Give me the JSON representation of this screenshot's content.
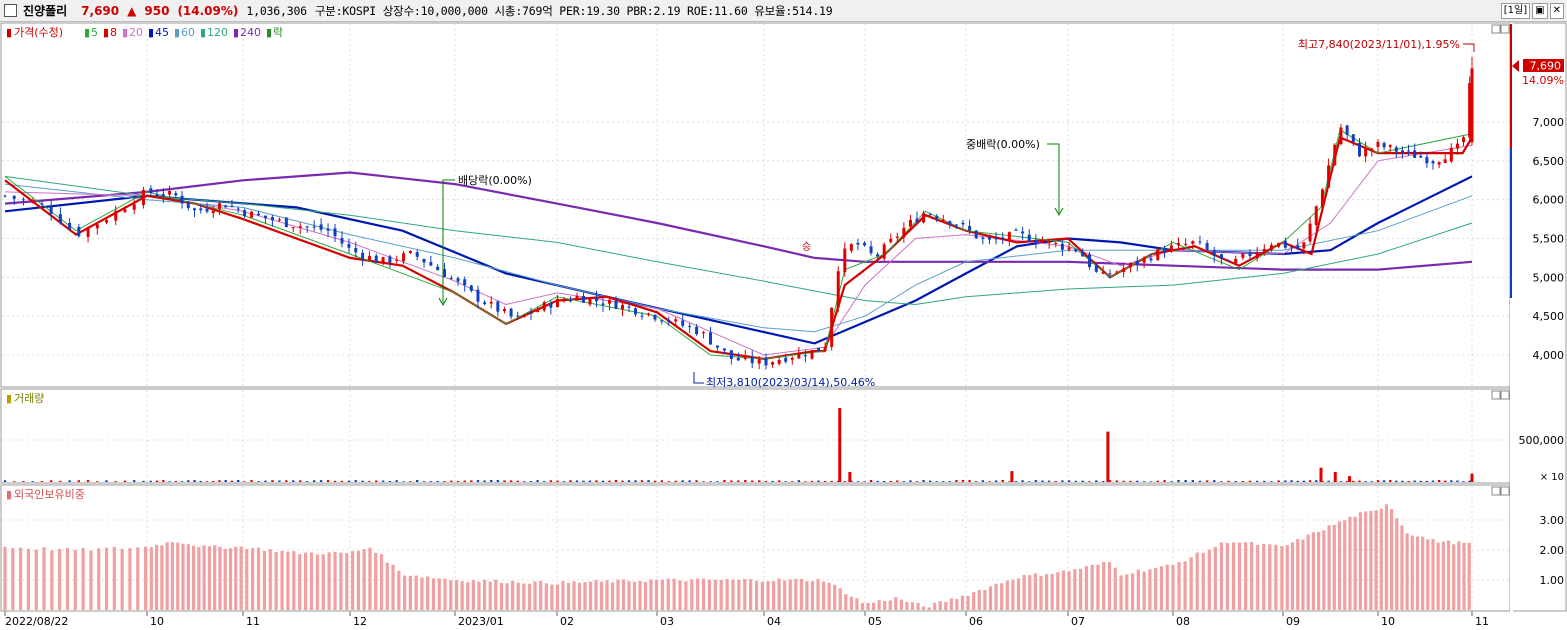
{
  "header": {
    "name": "진양폴리",
    "price": "7,690",
    "change_arrow": "▲",
    "change": "950",
    "change_pct": "(14.09%)",
    "volume": "1,036,306",
    "info": "구분:KOSPI 상장수:10,000,000 시총:769억 PER:19.30 PBR:2.19 ROE:11.60 유보율:514.19",
    "period_button": "[1일]",
    "restore_button": "▣",
    "close_button": "✕"
  },
  "legend": {
    "price": "가격(수정)",
    "ma": [
      {
        "label": "5",
        "color": "#2fa83a"
      },
      {
        "label": "8",
        "color": "#d40000"
      },
      {
        "label": "20",
        "color": "#d070c8"
      },
      {
        "label": "45",
        "color": "#0018b0"
      },
      {
        "label": "60",
        "color": "#5aa0c8"
      },
      {
        "label": "120",
        "color": "#30a880"
      },
      {
        "label": "240",
        "color": "#7a2ab0"
      }
    ],
    "drop_label": "락",
    "volume": "거래량",
    "foreign": "외국인보유비중"
  },
  "annotations": {
    "high": "최고7,840(2023/11/01),1.95%",
    "low": "최저3,810(2023/03/14),50.46%",
    "div1": "배당락(0.00%)",
    "div2": "중배락(0.00%)",
    "small": "승",
    "current_price": "7,690",
    "current_pct": "14.09%",
    "volume_unit": "× 10"
  },
  "chart_data": {
    "type": "candlestick",
    "price_axis": {
      "ticks": [
        "7,000",
        "6,500",
        "6,000",
        "5,500",
        "5,000",
        "4,500",
        "4,000"
      ],
      "values": [
        7000,
        6500,
        6000,
        5500,
        5000,
        4500,
        4000
      ]
    },
    "volume_axis": {
      "ticks": [
        "500,000"
      ],
      "values": [
        500000
      ]
    },
    "foreign_axis": {
      "ticks": [
        "3.00",
        "2.00",
        "1.00"
      ],
      "values": [
        3.0,
        2.0,
        1.0
      ]
    },
    "x_labels": [
      "2022/08/22",
      "10",
      "11",
      "12",
      "2023/01",
      "02",
      "03",
      "04",
      "05",
      "06",
      "07",
      "08",
      "09",
      "10",
      "11"
    ],
    "price_series": [
      {
        "m": 0,
        "c": 6050
      },
      {
        "m": 0.3,
        "c": 5900
      },
      {
        "m": 0.5,
        "c": 5550
      },
      {
        "m": 0.7,
        "c": 5750
      },
      {
        "m": 1.0,
        "c": 6100
      },
      {
        "m": 1.3,
        "c": 6050
      },
      {
        "m": 1.5,
        "c": 5850
      },
      {
        "m": 1.8,
        "c": 5950
      },
      {
        "m": 2.1,
        "c": 5800
      },
      {
        "m": 2.4,
        "c": 5700
      },
      {
        "m": 2.8,
        "c": 5600
      },
      {
        "m": 3.0,
        "c": 5350
      },
      {
        "m": 3.3,
        "c": 5200
      },
      {
        "m": 3.6,
        "c": 5300
      },
      {
        "m": 3.9,
        "c": 5050
      },
      {
        "m": 4.2,
        "c": 4750
      },
      {
        "m": 4.6,
        "c": 4450
      },
      {
        "m": 4.9,
        "c": 4650
      },
      {
        "m": 5.2,
        "c": 4750
      },
      {
        "m": 5.6,
        "c": 4650
      },
      {
        "m": 6.0,
        "c": 4500
      },
      {
        "m": 6.4,
        "c": 4300
      },
      {
        "m": 6.7,
        "c": 3950
      },
      {
        "m": 7.0,
        "c": 3900
      },
      {
        "m": 7.3,
        "c": 4000
      },
      {
        "m": 7.5,
        "c": 4050
      },
      {
        "m": 7.6,
        "c": 4100
      },
      {
        "m": 7.75,
        "c": 5250
      },
      {
        "m": 7.9,
        "c": 5450
      },
      {
        "m": 8.1,
        "c": 5250
      },
      {
        "m": 8.4,
        "c": 5650
      },
      {
        "m": 8.6,
        "c": 5850
      },
      {
        "m": 8.9,
        "c": 5700
      },
      {
        "m": 9.2,
        "c": 5450
      },
      {
        "m": 9.5,
        "c": 5550
      },
      {
        "m": 9.8,
        "c": 5450
      },
      {
        "m": 10.1,
        "c": 5350
      },
      {
        "m": 10.3,
        "c": 5000
      },
      {
        "m": 10.6,
        "c": 5150
      },
      {
        "m": 10.9,
        "c": 5350
      },
      {
        "m": 11.2,
        "c": 5450
      },
      {
        "m": 11.5,
        "c": 5150
      },
      {
        "m": 11.9,
        "c": 5450
      },
      {
        "m": 12.2,
        "c": 5350
      },
      {
        "m": 12.4,
        "c": 6100
      },
      {
        "m": 12.6,
        "c": 6950
      },
      {
        "m": 12.8,
        "c": 6600
      },
      {
        "m": 13.0,
        "c": 6700
      },
      {
        "m": 13.3,
        "c": 6600
      },
      {
        "m": 13.6,
        "c": 6500
      },
      {
        "m": 13.9,
        "c": 6700
      },
      {
        "m": 14.0,
        "c": 7690
      }
    ],
    "ma_series": [
      {
        "name": "45",
        "color": "#0018b0",
        "points": [
          [
            0,
            5850
          ],
          [
            1,
            6050
          ],
          [
            1.5,
            6000
          ],
          [
            2.5,
            5900
          ],
          [
            3.5,
            5600
          ],
          [
            4.5,
            5050
          ],
          [
            5.5,
            4750
          ],
          [
            6.5,
            4450
          ],
          [
            7.5,
            4150
          ],
          [
            8.5,
            4700
          ],
          [
            9,
            5050
          ],
          [
            9.5,
            5400
          ],
          [
            10,
            5500
          ],
          [
            10.5,
            5450
          ],
          [
            11,
            5350
          ],
          [
            12,
            5300
          ],
          [
            12.5,
            5350
          ],
          [
            13,
            5700
          ],
          [
            13.5,
            6000
          ],
          [
            14,
            6300
          ]
        ]
      },
      {
        "name": "240",
        "color": "#7a2ab0",
        "points": [
          [
            0,
            5950
          ],
          [
            1,
            6100
          ],
          [
            2,
            6250
          ],
          [
            3,
            6350
          ],
          [
            4,
            6200
          ],
          [
            5,
            5950
          ],
          [
            6,
            5700
          ],
          [
            7,
            5400
          ],
          [
            7.5,
            5250
          ],
          [
            8,
            5200
          ],
          [
            9,
            5200
          ],
          [
            10,
            5200
          ],
          [
            11,
            5150
          ],
          [
            12,
            5100
          ],
          [
            13,
            5100
          ],
          [
            14,
            5200
          ]
        ]
      },
      {
        "name": "120",
        "color": "#30a880",
        "points": [
          [
            0,
            6300
          ],
          [
            1,
            6050
          ],
          [
            2,
            5950
          ],
          [
            3,
            5800
          ],
          [
            4,
            5600
          ],
          [
            5,
            5450
          ],
          [
            6,
            5200
          ],
          [
            7,
            4950
          ],
          [
            8,
            4700
          ],
          [
            8.5,
            4650
          ],
          [
            9,
            4750
          ],
          [
            10,
            4850
          ],
          [
            11,
            4900
          ],
          [
            12,
            5050
          ],
          [
            13,
            5300
          ],
          [
            14,
            5700
          ]
        ]
      },
      {
        "name": "60",
        "color": "#5aa0c8",
        "points": [
          [
            0,
            6200
          ],
          [
            1,
            6000
          ],
          [
            2,
            5900
          ],
          [
            3,
            5550
          ],
          [
            4,
            5250
          ],
          [
            5,
            4900
          ],
          [
            6,
            4600
          ],
          [
            7,
            4350
          ],
          [
            7.5,
            4300
          ],
          [
            8,
            4500
          ],
          [
            8.5,
            4900
          ],
          [
            9,
            5200
          ],
          [
            10,
            5350
          ],
          [
            11,
            5350
          ],
          [
            12,
            5350
          ],
          [
            13,
            5600
          ],
          [
            14,
            6050
          ]
        ]
      },
      {
        "name": "20",
        "color": "#d070c8",
        "points": [
          [
            0,
            6100
          ],
          [
            1,
            6050
          ],
          [
            2,
            5850
          ],
          [
            3,
            5450
          ],
          [
            4,
            4950
          ],
          [
            4.5,
            4650
          ],
          [
            5,
            4800
          ],
          [
            6,
            4600
          ],
          [
            6.5,
            4300
          ],
          [
            7,
            4000
          ],
          [
            7.6,
            4100
          ],
          [
            8,
            4900
          ],
          [
            8.5,
            5500
          ],
          [
            9,
            5550
          ],
          [
            10,
            5400
          ],
          [
            10.5,
            5150
          ],
          [
            11,
            5350
          ],
          [
            12,
            5300
          ],
          [
            12.5,
            5700
          ],
          [
            13,
            6500
          ],
          [
            14,
            6700
          ]
        ]
      },
      {
        "name": "8",
        "color": "#d40000",
        "points": [
          [
            0,
            6250
          ],
          [
            0.5,
            5550
          ],
          [
            1,
            6050
          ],
          [
            1.5,
            5950
          ],
          [
            2,
            5750
          ],
          [
            3,
            5250
          ],
          [
            3.5,
            5150
          ],
          [
            4,
            4800
          ],
          [
            4.5,
            4400
          ],
          [
            5,
            4700
          ],
          [
            5.5,
            4750
          ],
          [
            6,
            4550
          ],
          [
            6.5,
            4050
          ],
          [
            7,
            3950
          ],
          [
            7.5,
            4050
          ],
          [
            7.6,
            4050
          ],
          [
            7.8,
            4900
          ],
          [
            8.2,
            5300
          ],
          [
            8.6,
            5800
          ],
          [
            9,
            5600
          ],
          [
            9.5,
            5450
          ],
          [
            10,
            5500
          ],
          [
            10.4,
            5000
          ],
          [
            10.8,
            5300
          ],
          [
            11.2,
            5400
          ],
          [
            11.6,
            5150
          ],
          [
            12,
            5450
          ],
          [
            12.3,
            5300
          ],
          [
            12.6,
            6800
          ],
          [
            13,
            6600
          ],
          [
            13.5,
            6600
          ],
          [
            13.9,
            6600
          ],
          [
            14,
            6800
          ]
        ]
      },
      {
        "name": "5",
        "color": "#2fa83a",
        "points": [
          [
            0,
            6300
          ],
          [
            0.5,
            5600
          ],
          [
            1,
            6100
          ],
          [
            2,
            5800
          ],
          [
            3,
            5300
          ],
          [
            4,
            4800
          ],
          [
            4.5,
            4400
          ],
          [
            5,
            4750
          ],
          [
            6,
            4500
          ],
          [
            6.5,
            4000
          ],
          [
            7,
            3950
          ],
          [
            7.6,
            4050
          ],
          [
            7.8,
            5100
          ],
          [
            8.2,
            5300
          ],
          [
            8.6,
            5850
          ],
          [
            9,
            5600
          ],
          [
            10,
            5450
          ],
          [
            10.4,
            5000
          ],
          [
            11,
            5450
          ],
          [
            11.6,
            5100
          ],
          [
            12,
            5450
          ],
          [
            12.4,
            5900
          ],
          [
            12.6,
            6900
          ],
          [
            13,
            6600
          ],
          [
            14,
            6850
          ]
        ]
      }
    ],
    "volume_spikes": [
      {
        "m": 7.75,
        "v": 880000
      },
      {
        "m": 7.85,
        "v": 120000
      },
      {
        "m": 9.45,
        "v": 130000
      },
      {
        "m": 10.38,
        "v": 600000
      },
      {
        "m": 12.4,
        "v": 170000
      },
      {
        "m": 12.55,
        "v": 120000
      },
      {
        "m": 12.7,
        "v": 70000
      },
      {
        "m": 14.0,
        "v": 100000
      }
    ],
    "foreign_series": [
      {
        "m": 0,
        "v": 2.1
      },
      {
        "m": 0.5,
        "v": 2.0
      },
      {
        "m": 1.0,
        "v": 2.1
      },
      {
        "m": 1.3,
        "v": 2.3
      },
      {
        "m": 1.6,
        "v": 2.1
      },
      {
        "m": 2.0,
        "v": 2.1
      },
      {
        "m": 2.5,
        "v": 1.9
      },
      {
        "m": 3.0,
        "v": 1.9
      },
      {
        "m": 3.2,
        "v": 2.1
      },
      {
        "m": 3.5,
        "v": 1.2
      },
      {
        "m": 4.0,
        "v": 1.0
      },
      {
        "m": 5.0,
        "v": 0.9
      },
      {
        "m": 6.0,
        "v": 1.0
      },
      {
        "m": 7.0,
        "v": 1.0
      },
      {
        "m": 7.6,
        "v": 1.0
      },
      {
        "m": 7.8,
        "v": 0.6
      },
      {
        "m": 8.0,
        "v": 0.2
      },
      {
        "m": 8.3,
        "v": 0.4
      },
      {
        "m": 8.6,
        "v": 0.1
      },
      {
        "m": 9.0,
        "v": 0.5
      },
      {
        "m": 9.5,
        "v": 1.1
      },
      {
        "m": 10.0,
        "v": 1.3
      },
      {
        "m": 10.4,
        "v": 1.6
      },
      {
        "m": 10.5,
        "v": 1.2
      },
      {
        "m": 11.0,
        "v": 1.5
      },
      {
        "m": 11.5,
        "v": 2.3
      },
      {
        "m": 12.0,
        "v": 2.1
      },
      {
        "m": 12.5,
        "v": 2.8
      },
      {
        "m": 12.8,
        "v": 3.2
      },
      {
        "m": 13.0,
        "v": 3.3
      },
      {
        "m": 13.1,
        "v": 3.6
      },
      {
        "m": 13.3,
        "v": 2.6
      },
      {
        "m": 13.6,
        "v": 2.3
      },
      {
        "m": 14.0,
        "v": 2.2
      }
    ]
  }
}
